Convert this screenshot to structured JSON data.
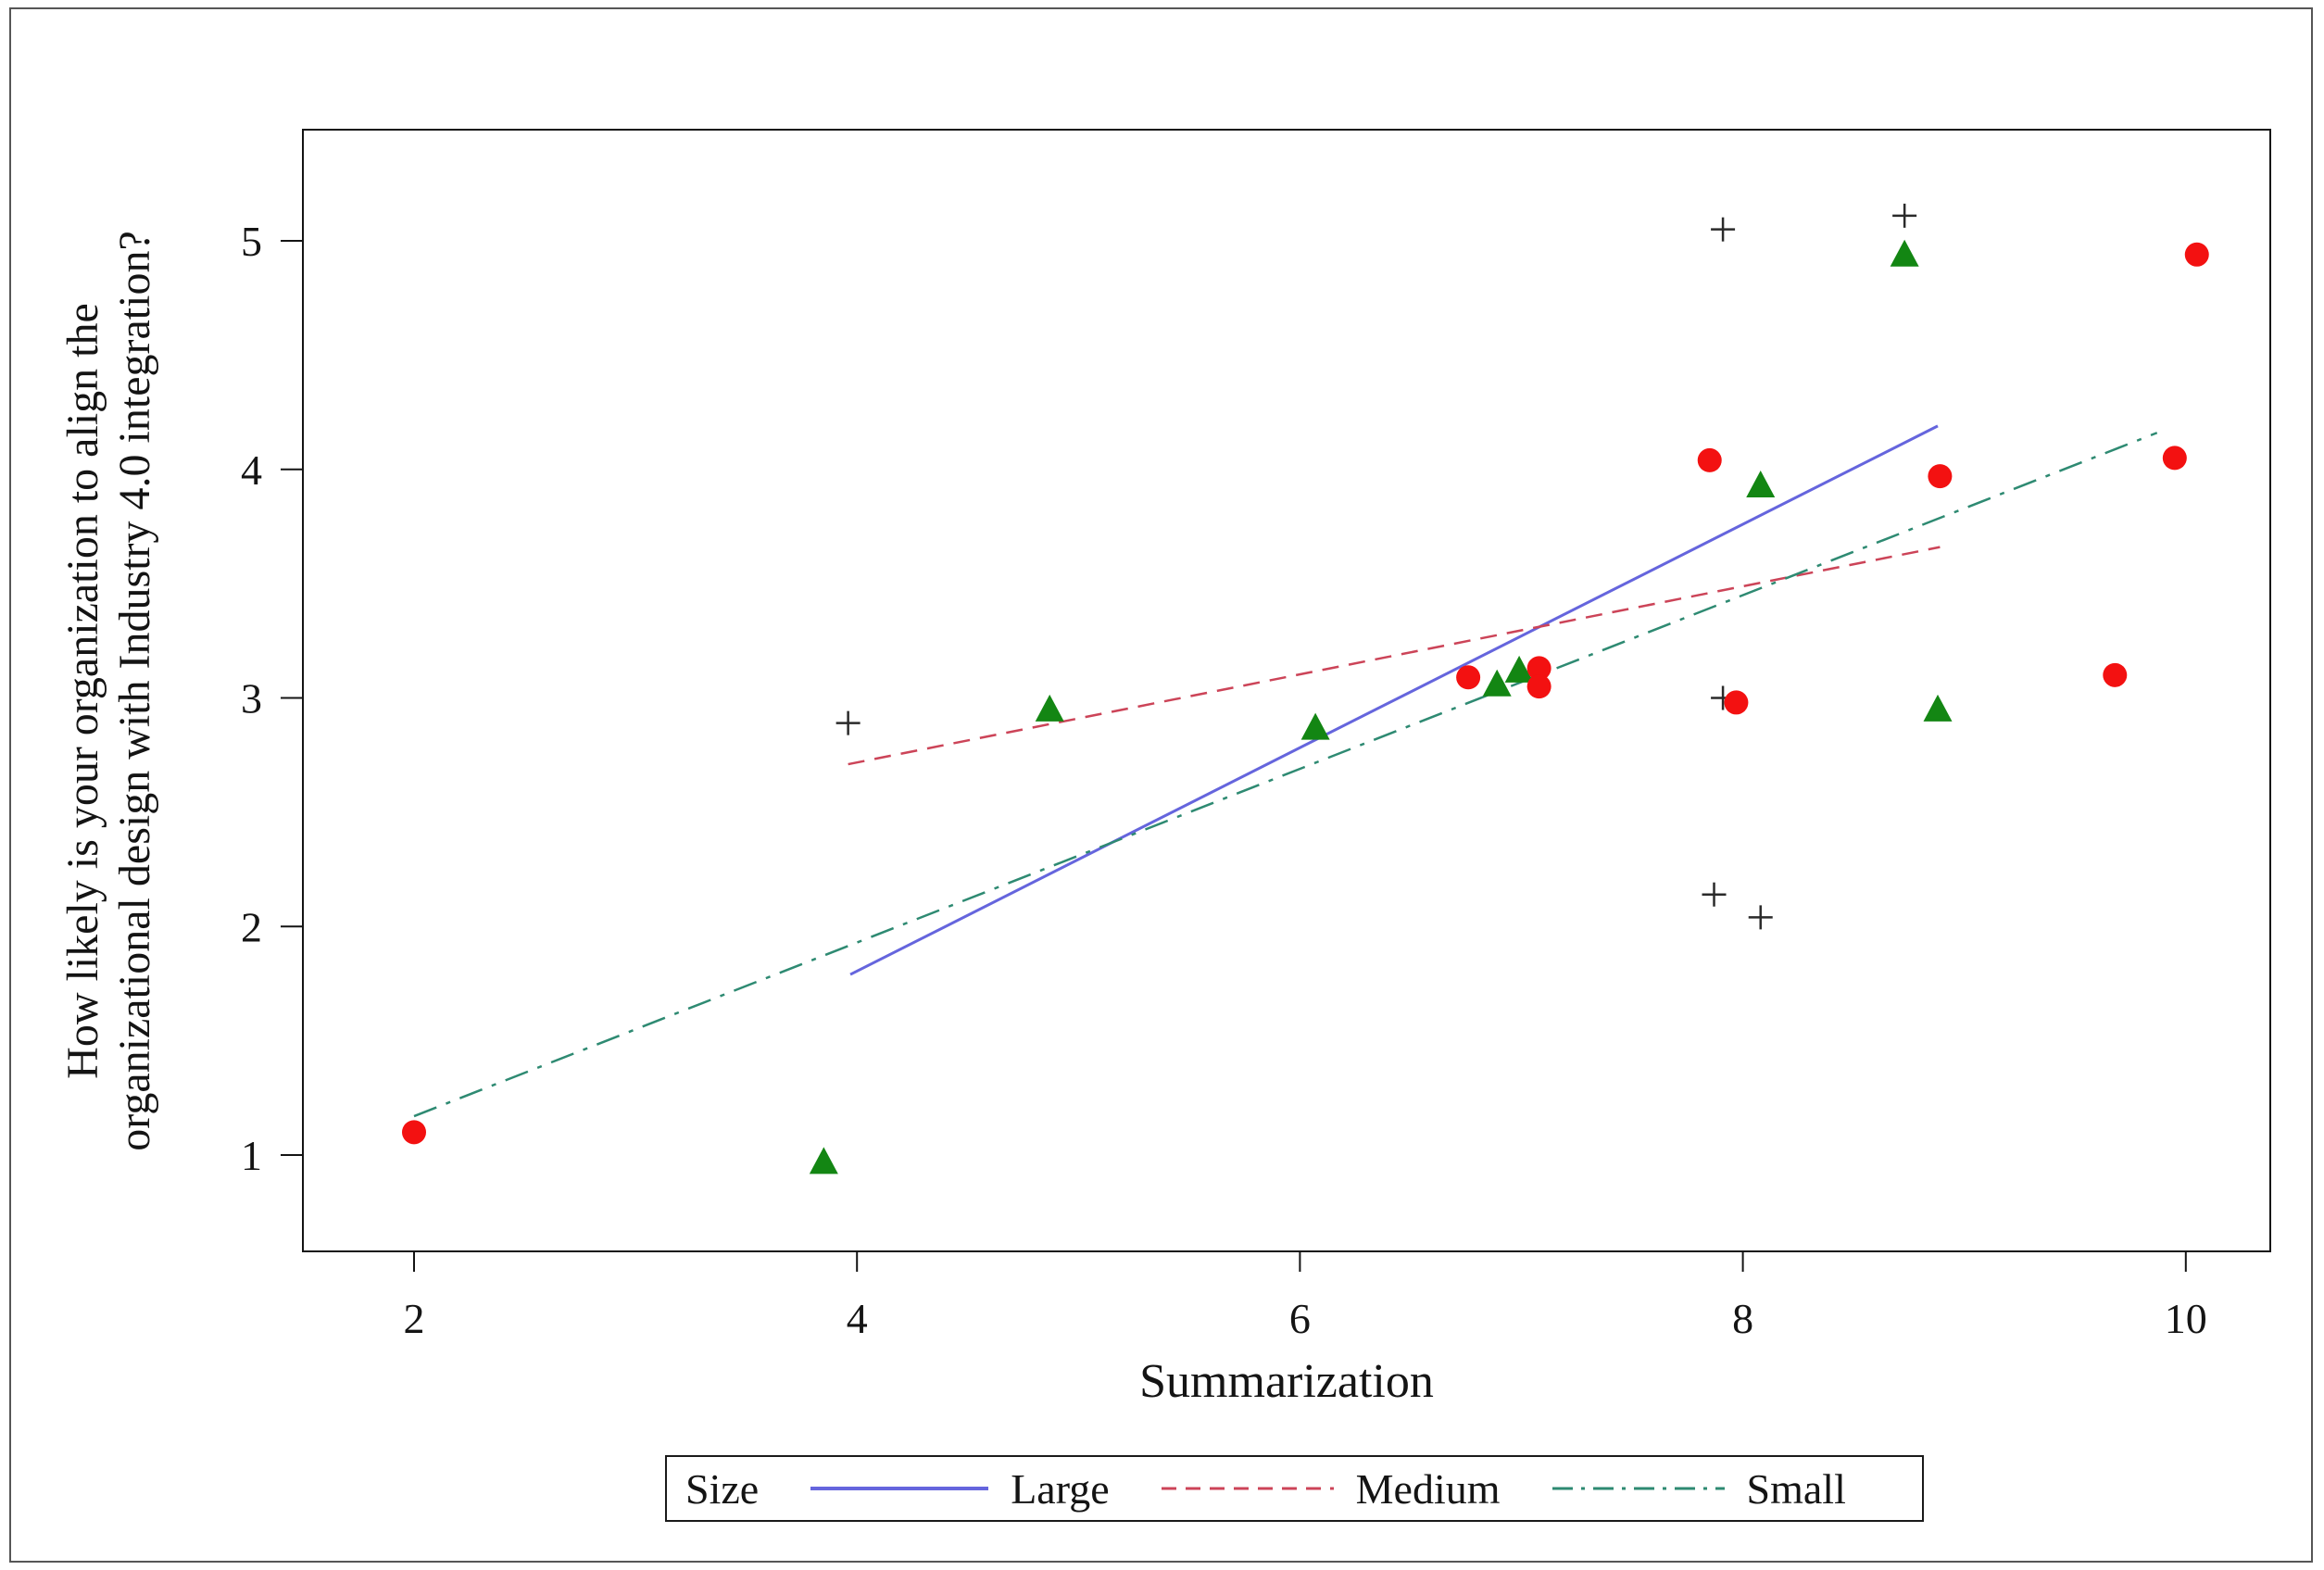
{
  "figure": {
    "background": "#ffffff",
    "border_color": "#565656"
  },
  "chart_data": {
    "type": "scatter",
    "title": "",
    "xlabel": "Summarization",
    "ylabel_lines": [
      "How likely is your organization to align the",
      "organizational design with Industry 4.0 integration?"
    ],
    "xlim": [
      1.5,
      10.4
    ],
    "ylim": [
      0.6,
      5.5
    ],
    "xticks": [
      "2",
      "4",
      "6",
      "8",
      "10"
    ],
    "yticks": [
      "1",
      "2",
      "3",
      "4",
      "5"
    ],
    "xtick_values": [
      2,
      4,
      6,
      8,
      10
    ],
    "ytick_values": [
      1,
      2,
      3,
      4,
      5
    ],
    "grid": false,
    "axis_color": "#141414",
    "legend": {
      "title": "Size",
      "position": "bottom",
      "entries": [
        {
          "label": "Large",
          "color": "#6565dd",
          "dash": "solid"
        },
        {
          "label": "Medium",
          "color": "#cc4458",
          "dash": "dashed"
        },
        {
          "label": "Small",
          "color": "#2e8a72",
          "dash": "dashdot"
        }
      ]
    },
    "series": [
      {
        "name": "plus-markers",
        "marker": "plus",
        "color": "#2a2a2a",
        "points": [
          [
            3.96,
            2.89
          ],
          [
            7.91,
            5.05
          ],
          [
            8.73,
            5.11
          ],
          [
            7.91,
            3.0
          ],
          [
            7.87,
            2.14
          ],
          [
            8.08,
            2.04
          ]
        ]
      },
      {
        "name": "triangle-markers",
        "marker": "triangle",
        "color": "#138613",
        "points": [
          [
            3.85,
            0.97
          ],
          [
            4.87,
            2.95
          ],
          [
            6.07,
            2.87
          ],
          [
            6.89,
            3.06
          ],
          [
            6.99,
            3.12
          ],
          [
            8.08,
            3.93
          ],
          [
            8.73,
            4.94
          ],
          [
            8.88,
            2.95
          ]
        ]
      },
      {
        "name": "circle-markers",
        "marker": "circle",
        "color": "#f31111",
        "points": [
          [
            2.0,
            1.1
          ],
          [
            6.76,
            3.09
          ],
          [
            7.08,
            3.13
          ],
          [
            7.08,
            3.05
          ],
          [
            7.85,
            4.04
          ],
          [
            7.97,
            2.98
          ],
          [
            8.89,
            3.97
          ],
          [
            9.68,
            3.1
          ],
          [
            9.95,
            4.05
          ],
          [
            10.05,
            4.94
          ]
        ]
      }
    ],
    "fit_lines": [
      {
        "name": "Large",
        "color": "#6565dd",
        "dash": "solid",
        "x1": 3.97,
        "y1": 1.79,
        "x2": 8.88,
        "y2": 4.19
      },
      {
        "name": "Medium",
        "color": "#cc4458",
        "dash": "dashed",
        "x1": 3.96,
        "y1": 2.71,
        "x2": 8.89,
        "y2": 3.66
      },
      {
        "name": "Small",
        "color": "#2e8a72",
        "dash": "dashdot",
        "x1": 2.0,
        "y1": 1.17,
        "x2": 9.87,
        "y2": 4.16
      }
    ]
  }
}
